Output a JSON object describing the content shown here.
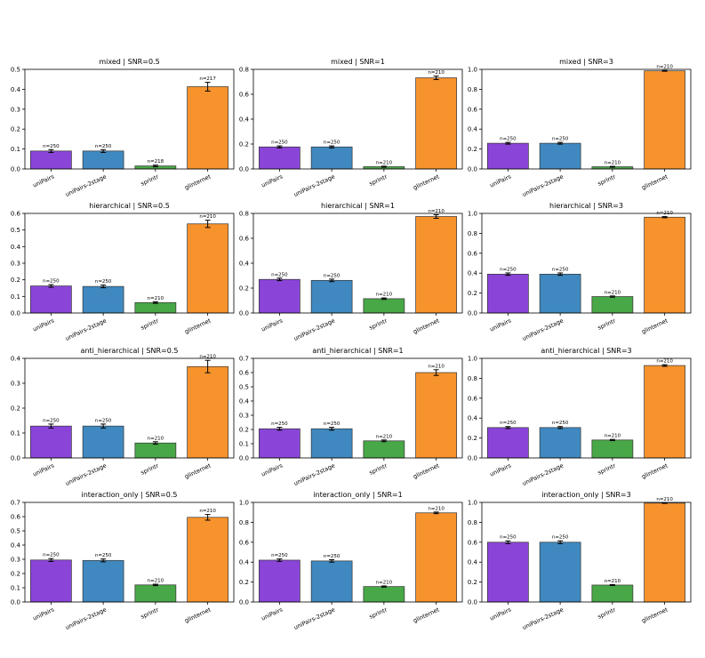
{
  "chart_data": [
    {
      "type": "bar",
      "title": "mixed | SNR=0.5",
      "categories": [
        "uniPairs",
        "uniPairs-2stage",
        "sprintr",
        "glinternet"
      ],
      "values": [
        0.09,
        0.09,
        0.015,
        0.413
      ],
      "errors": [
        0.007,
        0.007,
        0.004,
        0.022
      ],
      "n_labels": [
        "n=250",
        "n=250",
        "n=218",
        "n=217"
      ],
      "ylim": [
        0,
        0.5
      ],
      "yticks": [
        "0.0",
        "0.1",
        "0.2",
        "0.3",
        "0.4",
        "0.5"
      ]
    },
    {
      "type": "bar",
      "title": "mixed | SNR=1",
      "categories": [
        "uniPairs",
        "uniPairs-2stage",
        "sprintr",
        "glinternet"
      ],
      "values": [
        0.177,
        0.177,
        0.018,
        0.732
      ],
      "errors": [
        0.008,
        0.008,
        0.004,
        0.014
      ],
      "n_labels": [
        "n=250",
        "n=250",
        "n=210",
        "n=210"
      ],
      "ylim": [
        0,
        0.8
      ],
      "yticks": [
        "0.0",
        "0.2",
        "0.4",
        "0.6",
        "0.8"
      ]
    },
    {
      "type": "bar",
      "title": "mixed | SNR=3",
      "categories": [
        "uniPairs",
        "uniPairs-2stage",
        "sprintr",
        "glinternet"
      ],
      "values": [
        0.258,
        0.258,
        0.022,
        0.985
      ],
      "errors": [
        0.009,
        0.009,
        0.004,
        0.004
      ],
      "n_labels": [
        "n=250",
        "n=250",
        "n=210",
        "n=210"
      ],
      "ylim": [
        0,
        1.0
      ],
      "yticks": [
        "0.0",
        "0.2",
        "0.4",
        "0.6",
        "0.8",
        "1.0"
      ]
    },
    {
      "type": "bar",
      "title": "hierarchical | SNR=0.5",
      "categories": [
        "uniPairs",
        "uniPairs-2stage",
        "sprintr",
        "glinternet"
      ],
      "values": [
        0.163,
        0.16,
        0.063,
        0.537
      ],
      "errors": [
        0.008,
        0.008,
        0.005,
        0.022
      ],
      "n_labels": [
        "n=250",
        "n=250",
        "n=210",
        "n=210"
      ],
      "ylim": [
        0,
        0.6
      ],
      "yticks": [
        "0.0",
        "0.1",
        "0.2",
        "0.3",
        "0.4",
        "0.5",
        "0.6"
      ]
    },
    {
      "type": "bar",
      "title": "hierarchical | SNR=1",
      "categories": [
        "uniPairs",
        "uniPairs-2stage",
        "sprintr",
        "glinternet"
      ],
      "values": [
        0.27,
        0.262,
        0.115,
        0.775
      ],
      "errors": [
        0.01,
        0.01,
        0.006,
        0.014
      ],
      "n_labels": [
        "n=250",
        "n=250",
        "n=210",
        "n=210"
      ],
      "ylim": [
        0,
        0.8
      ],
      "yticks": [
        "0.0",
        "0.2",
        "0.4",
        "0.6",
        "0.8"
      ]
    },
    {
      "type": "bar",
      "title": "hierarchical | SNR=3",
      "categories": [
        "uniPairs",
        "uniPairs-2stage",
        "sprintr",
        "glinternet"
      ],
      "values": [
        0.39,
        0.39,
        0.165,
        0.962
      ],
      "errors": [
        0.012,
        0.012,
        0.006,
        0.006
      ],
      "n_labels": [
        "n=250",
        "n=250",
        "n=210",
        "n=210"
      ],
      "ylim": [
        0,
        1.0
      ],
      "yticks": [
        "0.0",
        "0.2",
        "0.4",
        "0.6",
        "0.8",
        "1.0"
      ]
    },
    {
      "type": "bar",
      "title": "anti_hierarchical | SNR=0.5",
      "categories": [
        "uniPairs",
        "uniPairs-2stage",
        "sprintr",
        "glinternet"
      ],
      "values": [
        0.128,
        0.128,
        0.06,
        0.367
      ],
      "errors": [
        0.008,
        0.008,
        0.005,
        0.025
      ],
      "n_labels": [
        "n=250",
        "n=250",
        "n=210",
        "n=210"
      ],
      "ylim": [
        0,
        0.4
      ],
      "yticks": [
        "0.0",
        "0.1",
        "0.2",
        "0.3",
        "0.4"
      ]
    },
    {
      "type": "bar",
      "title": "anti_hierarchical | SNR=1",
      "categories": [
        "uniPairs",
        "uniPairs-2stage",
        "sprintr",
        "glinternet"
      ],
      "values": [
        0.205,
        0.205,
        0.12,
        0.6
      ],
      "errors": [
        0.01,
        0.01,
        0.006,
        0.02
      ],
      "n_labels": [
        "n=250",
        "n=250",
        "n=210",
        "n=210"
      ],
      "ylim": [
        0,
        0.7
      ],
      "yticks": [
        "0.0",
        "0.1",
        "0.2",
        "0.3",
        "0.4",
        "0.5",
        "0.6",
        "0.7"
      ]
    },
    {
      "type": "bar",
      "title": "anti_hierarchical | SNR=3",
      "categories": [
        "uniPairs",
        "uniPairs-2stage",
        "sprintr",
        "glinternet"
      ],
      "values": [
        0.305,
        0.305,
        0.18,
        0.928
      ],
      "errors": [
        0.01,
        0.01,
        0.006,
        0.008
      ],
      "n_labels": [
        "n=250",
        "n=250",
        "n=210",
        "n=210"
      ],
      "ylim": [
        0,
        1.0
      ],
      "yticks": [
        "0.0",
        "0.2",
        "0.4",
        "0.6",
        "0.8",
        "1.0"
      ]
    },
    {
      "type": "bar",
      "title": "interaction_only | SNR=0.5",
      "categories": [
        "uniPairs",
        "uniPairs-2stage",
        "sprintr",
        "glinternet"
      ],
      "values": [
        0.295,
        0.292,
        0.12,
        0.595
      ],
      "errors": [
        0.01,
        0.01,
        0.005,
        0.02
      ],
      "n_labels": [
        "n=250",
        "n=250",
        "n=210",
        "n=210"
      ],
      "ylim": [
        0,
        0.7
      ],
      "yticks": [
        "0.0",
        "0.1",
        "0.2",
        "0.3",
        "0.4",
        "0.5",
        "0.6",
        "0.7"
      ]
    },
    {
      "type": "bar",
      "title": "interaction_only | SNR=1",
      "categories": [
        "uniPairs",
        "uniPairs-2stage",
        "sprintr",
        "glinternet"
      ],
      "values": [
        0.42,
        0.412,
        0.155,
        0.895
      ],
      "errors": [
        0.012,
        0.012,
        0.006,
        0.008
      ],
      "n_labels": [
        "n=250",
        "n=250",
        "n=210",
        "n=210"
      ],
      "ylim": [
        0,
        1.0
      ],
      "yticks": [
        "0.0",
        "0.2",
        "0.4",
        "0.6",
        "0.8",
        "1.0"
      ]
    },
    {
      "type": "bar",
      "title": "interaction_only | SNR=3",
      "categories": [
        "uniPairs",
        "uniPairs-2stage",
        "sprintr",
        "glinternet"
      ],
      "values": [
        0.6,
        0.6,
        0.17,
        0.993
      ],
      "errors": [
        0.014,
        0.014,
        0.005,
        0.003
      ],
      "n_labels": [
        "n=250",
        "n=250",
        "n=210",
        "n=210"
      ],
      "ylim": [
        0,
        1.0
      ],
      "yticks": [
        "0.0",
        "0.2",
        "0.4",
        "0.6",
        "0.8",
        "1.0"
      ]
    }
  ],
  "colors": {
    "uniPairs": "#8a45d8",
    "uniPairs-2stage": "#3f89c0",
    "sprintr": "#48a746",
    "glinternet": "#f7932d"
  }
}
